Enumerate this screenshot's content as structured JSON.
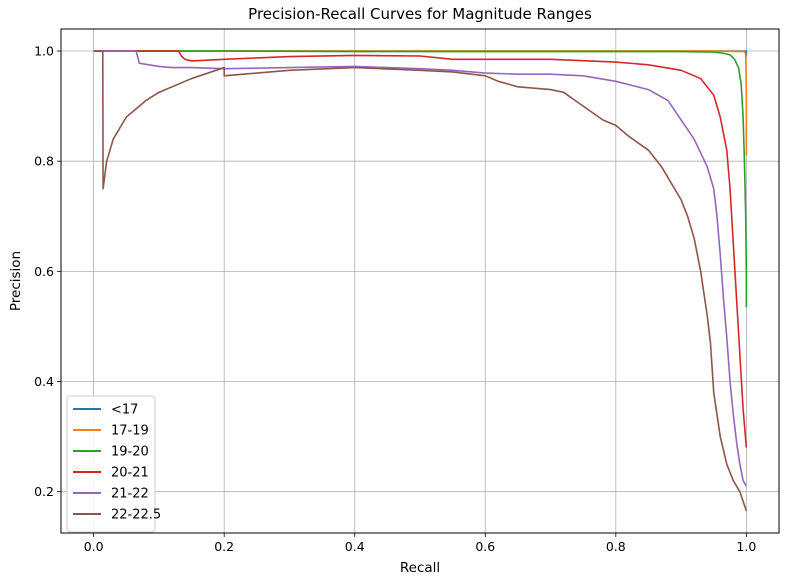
{
  "chart_data": {
    "type": "line",
    "title": "Precision-Recall Curves for Magnitude Ranges",
    "xlabel": "Recall",
    "ylabel": "Precision",
    "xlim": [
      -0.05,
      1.05
    ],
    "ylim": [
      0.125,
      1.04
    ],
    "xticks": [
      0.0,
      0.2,
      0.4,
      0.6,
      0.8,
      1.0
    ],
    "xtick_labels": [
      "0.0",
      "0.2",
      "0.4",
      "0.6",
      "0.8",
      "1.0"
    ],
    "yticks": [
      0.2,
      0.4,
      0.6,
      0.8,
      1.0
    ],
    "ytick_labels": [
      "0.2",
      "0.4",
      "0.6",
      "0.8",
      "1.0"
    ],
    "grid": true,
    "legend_position": "lower-left",
    "series": [
      {
        "name": "<17",
        "color": "#1f77b4",
        "x": [
          0.0,
          0.2,
          0.4,
          0.6,
          0.8,
          0.95,
          1.0,
          1.0
        ],
        "y": [
          1.0,
          1.0,
          1.0,
          1.0,
          1.0,
          1.0,
          1.0,
          0.99
        ]
      },
      {
        "name": "17-19",
        "color": "#ff7f0e",
        "x": [
          0.0,
          0.2,
          0.4,
          0.6,
          0.8,
          0.95,
          0.997,
          0.999,
          1.0,
          1.0
        ],
        "y": [
          1.0,
          1.0,
          1.0,
          1.0,
          1.0,
          1.0,
          0.999,
          0.995,
          0.92,
          0.81
        ]
      },
      {
        "name": "19-20",
        "color": "#2ca02c",
        "x": [
          0.0,
          0.2,
          0.4,
          0.6,
          0.8,
          0.9,
          0.95,
          0.965,
          0.975,
          0.982,
          0.988,
          0.992,
          0.995,
          0.997,
          0.999,
          1.0,
          1.0
        ],
        "y": [
          1.0,
          1.0,
          0.999,
          0.999,
          0.999,
          0.999,
          0.998,
          0.996,
          0.993,
          0.985,
          0.97,
          0.94,
          0.88,
          0.8,
          0.7,
          0.6,
          0.535
        ]
      },
      {
        "name": "20-21",
        "color": "#d62728",
        "x": [
          0.0,
          0.13,
          0.135,
          0.14,
          0.15,
          0.2,
          0.3,
          0.4,
          0.5,
          0.55,
          0.6,
          0.7,
          0.8,
          0.85,
          0.9,
          0.93,
          0.95,
          0.96,
          0.97,
          0.975,
          0.98,
          0.985,
          0.99,
          0.995,
          1.0
        ],
        "y": [
          1.0,
          1.0,
          0.99,
          0.985,
          0.982,
          0.985,
          0.99,
          0.992,
          0.991,
          0.985,
          0.985,
          0.985,
          0.98,
          0.975,
          0.965,
          0.95,
          0.92,
          0.88,
          0.82,
          0.75,
          0.65,
          0.55,
          0.45,
          0.35,
          0.28
        ]
      },
      {
        "name": "21-22",
        "color": "#9467bd",
        "x": [
          0.0,
          0.065,
          0.07,
          0.1,
          0.12,
          0.15,
          0.2,
          0.3,
          0.4,
          0.5,
          0.55,
          0.6,
          0.65,
          0.7,
          0.75,
          0.8,
          0.85,
          0.88,
          0.9,
          0.92,
          0.94,
          0.95,
          0.955,
          0.96,
          0.965,
          0.97,
          0.975,
          0.98,
          0.985,
          0.99,
          0.995,
          1.0
        ],
        "y": [
          1.0,
          1.0,
          0.978,
          0.972,
          0.97,
          0.97,
          0.968,
          0.97,
          0.972,
          0.968,
          0.965,
          0.96,
          0.958,
          0.958,
          0.955,
          0.945,
          0.93,
          0.91,
          0.875,
          0.84,
          0.79,
          0.75,
          0.7,
          0.63,
          0.55,
          0.48,
          0.4,
          0.34,
          0.29,
          0.25,
          0.22,
          0.21
        ]
      },
      {
        "name": "22-22.5",
        "color": "#8c564b",
        "x": [
          0.0,
          0.014,
          0.0145,
          0.02,
          0.03,
          0.05,
          0.08,
          0.1,
          0.15,
          0.2,
          0.2,
          0.3,
          0.4,
          0.5,
          0.55,
          0.6,
          0.62,
          0.65,
          0.7,
          0.72,
          0.75,
          0.78,
          0.8,
          0.82,
          0.85,
          0.87,
          0.88,
          0.89,
          0.9,
          0.91,
          0.92,
          0.93,
          0.94,
          0.945,
          0.95,
          0.96,
          0.97,
          0.98,
          0.99,
          1.0
        ],
        "y": [
          1.0,
          1.0,
          0.75,
          0.8,
          0.84,
          0.88,
          0.91,
          0.925,
          0.95,
          0.97,
          0.955,
          0.965,
          0.97,
          0.965,
          0.962,
          0.955,
          0.945,
          0.935,
          0.93,
          0.925,
          0.9,
          0.875,
          0.865,
          0.845,
          0.82,
          0.79,
          0.77,
          0.75,
          0.73,
          0.7,
          0.66,
          0.6,
          0.52,
          0.47,
          0.38,
          0.3,
          0.25,
          0.22,
          0.2,
          0.165
        ]
      }
    ]
  }
}
